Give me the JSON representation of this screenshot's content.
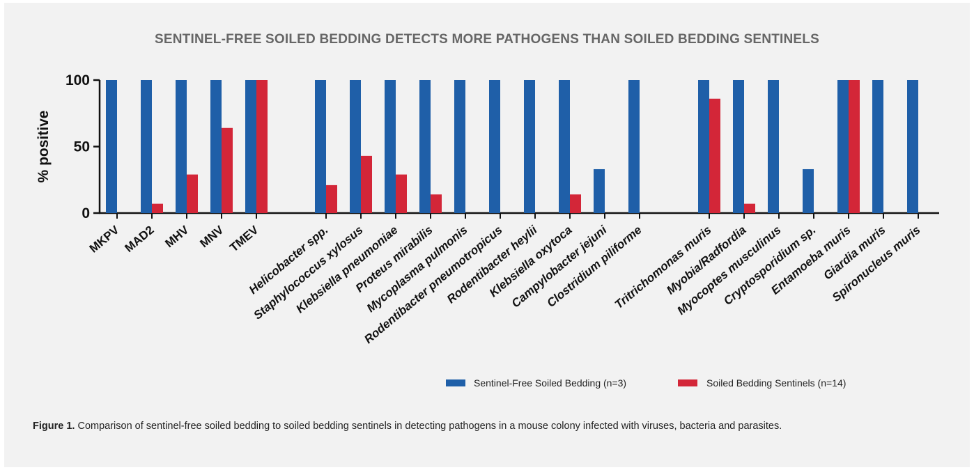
{
  "figure": {
    "title": "SENTINEL-FREE SOILED BEDDING DETECTS MORE PATHOGENS THAN SOILED BEDDING SENTINELS",
    "caption_label": "Figure 1.",
    "caption_text": " Comparison of sentinel-free soiled bedding to soiled bedding sentinels in detecting pathogens in a mouse colony infected with viruses, bacteria and parasites."
  },
  "chart_data": {
    "type": "bar",
    "title": "SENTINEL-FREE SOILED BEDDING DETECTS MORE PATHOGENS THAN SOILED BEDDING SENTINELS",
    "xlabel": "",
    "ylabel": "% positive",
    "ylim": [
      0,
      100
    ],
    "yticks": [
      0,
      50,
      100
    ],
    "grid": false,
    "legend_position": "bottom-right",
    "colors": {
      "sentinel_free": "#1f5fa8",
      "sentinels": "#d32638",
      "panel_bg": "#f2f2f2"
    },
    "groups": [
      {
        "name": "viruses",
        "categories": [
          "MKPV",
          "MAD2",
          "MHV",
          "MNV",
          "TMEV"
        ],
        "italic": false
      },
      {
        "name": "bacteria",
        "categories": [
          "Helicobacter spp.",
          "Staphylococcus xylosus",
          "Klebsiella pneumoniae",
          "Proteus mirabilis",
          "Mycoplasma pulmonis",
          "Rodentibacter pneumotropicus",
          "Rodentibacter heylii",
          "Klebsiella oxytoca",
          "Campylobacter jejuni",
          "Clostridium piliforme"
        ],
        "italic": true
      },
      {
        "name": "parasites",
        "categories": [
          "Tritrichomonas muris",
          "Myobia/Radfordia",
          "Myocoptes musculinus",
          "Cryptosporidium sp.",
          "Entamoeba muris",
          "Giardia muris",
          "Spironucleus muris"
        ],
        "italic": true
      }
    ],
    "series": [
      {
        "name": "Sentinel-Free Soiled Bedding (n=3)",
        "values": [
          100,
          100,
          100,
          100,
          100,
          100,
          100,
          100,
          100,
          100,
          100,
          100,
          100,
          33,
          100,
          100,
          100,
          100,
          33,
          100,
          100,
          100
        ]
      },
      {
        "name": "Soiled Bedding Sentinels (n=14)",
        "values": [
          0,
          7,
          29,
          64,
          100,
          21,
          43,
          29,
          14,
          0,
          0,
          0,
          14,
          0,
          0,
          86,
          7,
          0,
          0,
          100,
          0,
          0
        ]
      }
    ]
  }
}
